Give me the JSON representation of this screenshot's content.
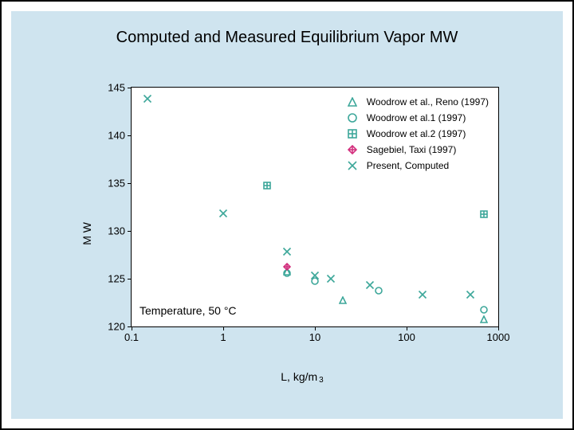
{
  "panel_bg": "#cfe4ef",
  "title": "Computed and Measured Equilibrium Vapor MW",
  "chart": {
    "type": "scatter",
    "xscale": "log",
    "yscale": "linear",
    "xlim": [
      0.1,
      1000
    ],
    "ylim": [
      120,
      145
    ],
    "xticks": [
      0.1,
      1,
      10,
      100,
      1000
    ],
    "xtick_labels": [
      "0.1",
      "1",
      "10",
      "100",
      "1000"
    ],
    "yticks": [
      120,
      125,
      130,
      135,
      140,
      145
    ],
    "ytick_labels": [
      "120",
      "125",
      "130",
      "135",
      "140",
      "145"
    ],
    "xlabel": "L, kg/m",
    "xlabel_sup": "3",
    "ylabel": "M W",
    "note": "Temperature, 50 °C",
    "plot_bg": "#ffffff",
    "axis_color": "#000000",
    "label_fontsize": 14,
    "tick_fontsize": 13,
    "title_fontsize": 20,
    "series": [
      {
        "id": "woodrow_reno",
        "label": "Woodrow et al., Reno (1997)",
        "marker": "triangle",
        "color": "#3da79a",
        "size": 10,
        "points": [
          [
            5,
            126.0
          ],
          [
            20,
            123.0
          ],
          [
            700,
            121.0
          ]
        ]
      },
      {
        "id": "woodrow1",
        "label": "Woodrow et al.1 (1997)",
        "marker": "circle",
        "color": "#3da79a",
        "size": 10,
        "points": [
          [
            5,
            125.8
          ],
          [
            10,
            125.0
          ],
          [
            50,
            124.0
          ],
          [
            700,
            122.0
          ]
        ]
      },
      {
        "id": "woodrow2",
        "label": "Woodrow et al.2 (1997)",
        "marker": "square-plus",
        "color": "#3da79a",
        "size": 10,
        "points": [
          [
            3,
            135.0
          ],
          [
            700,
            132.0
          ]
        ]
      },
      {
        "id": "sagebiel",
        "label": "Sagebiel, Taxi  (1997)",
        "marker": "diamond-plus",
        "color": "#d3307e",
        "size": 10,
        "points": [
          [
            5,
            126.5
          ]
        ]
      },
      {
        "id": "present",
        "label": "Present, Computed",
        "marker": "x",
        "color": "#3da79a",
        "size": 11,
        "points": [
          [
            0.15,
            144.0
          ],
          [
            1,
            132.0
          ],
          [
            5,
            128.0
          ],
          [
            10,
            125.5
          ],
          [
            15,
            125.2
          ],
          [
            40,
            124.5
          ],
          [
            150,
            123.5
          ],
          [
            500,
            123.5
          ]
        ]
      }
    ],
    "legend_position": "top-right"
  }
}
